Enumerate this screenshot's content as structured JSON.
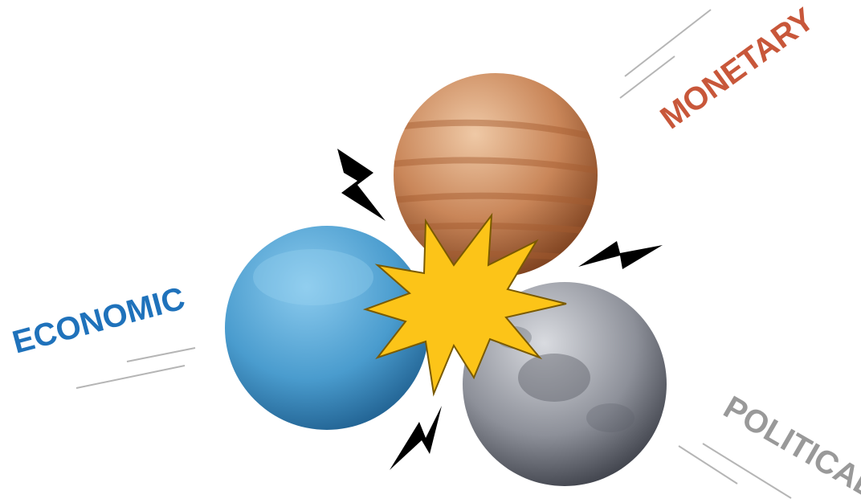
{
  "labels": {
    "monetary": "MONETARY",
    "economic": "ECONOMIC",
    "political": "POLITICAL"
  }
}
